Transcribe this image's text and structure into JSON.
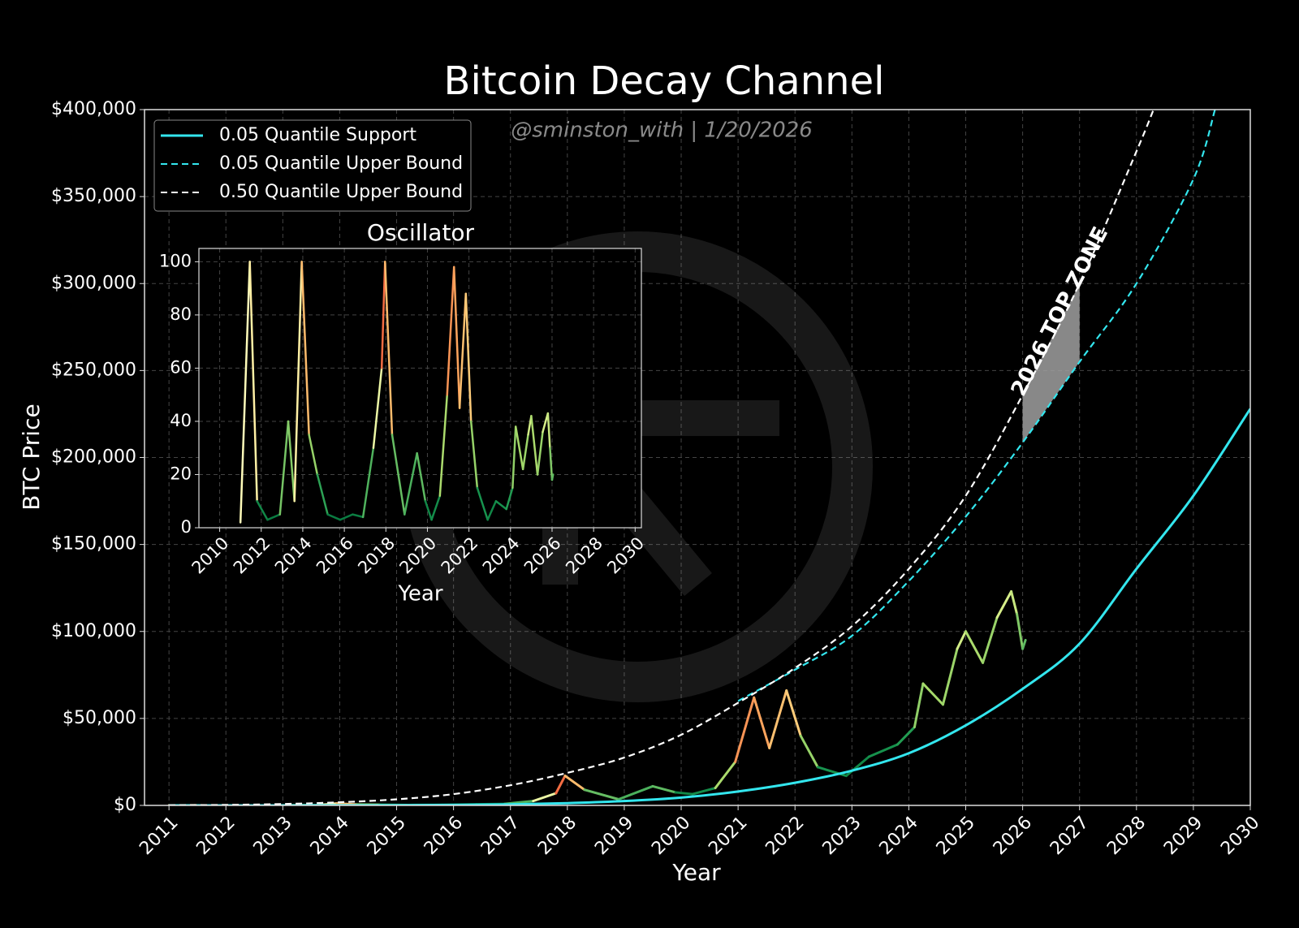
{
  "chart_data": [
    {
      "type": "line",
      "title": "Bitcoin Decay Channel",
      "subtitle": "@sminston_with  |  1/20/2026",
      "xlabel": "Year",
      "ylabel": "BTC Price",
      "xlim": [
        2010.57,
        2030
      ],
      "ylim": [
        0,
        400000
      ],
      "xticks": [
        2011,
        2012,
        2013,
        2014,
        2015,
        2016,
        2017,
        2018,
        2019,
        2020,
        2021,
        2022,
        2023,
        2024,
        2025,
        2026,
        2027,
        2028,
        2029,
        2030
      ],
      "yticks": [
        {
          "value": 0,
          "label": "$0"
        },
        {
          "value": 50000,
          "label": "$50,000"
        },
        {
          "value": 100000,
          "label": "$100,000"
        },
        {
          "value": 150000,
          "label": "$150,000"
        },
        {
          "value": 200000,
          "label": "$200,000"
        },
        {
          "value": 250000,
          "label": "$250,000"
        },
        {
          "value": 300000,
          "label": "$300,000"
        },
        {
          "value": 350000,
          "label": "$350,000"
        },
        {
          "value": 400000,
          "label": "$400,000"
        }
      ],
      "grid": true,
      "legend_loc": "upper left",
      "series": [
        {
          "name": "0.05 Quantile Support",
          "color": "#33e6ee",
          "dashed": false,
          "x": [
            2011,
            2012,
            2013,
            2014,
            2015,
            2016,
            2017,
            2018,
            2019,
            2020,
            2021,
            2022,
            2023,
            2024,
            2025,
            2026,
            2027,
            2028,
            2029,
            2030
          ],
          "values": [
            1,
            5,
            20,
            50,
            100,
            300,
            600,
            1300,
            2500,
            4500,
            8000,
            13000,
            20000,
            30000,
            46000,
            67000,
            93000,
            136000,
            178000,
            228000
          ]
        },
        {
          "name": "0.05 Quantile Upper Bound",
          "color": "#33e6ee",
          "dashed": true,
          "x": [
            2021,
            2022,
            2023,
            2024,
            2025,
            2026,
            2027,
            2028,
            2029,
            2029.38
          ],
          "values": [
            60000,
            78000,
            97500,
            129000,
            166000,
            208600,
            255000,
            300000,
            360000,
            400000
          ]
        },
        {
          "name": "0.50 Quantile Upper Bound",
          "color": "#ffffff",
          "dashed": true,
          "x": [
            2011,
            2012,
            2013,
            2014,
            2015,
            2016,
            2017,
            2018,
            2019,
            2020,
            2021,
            2022,
            2023,
            2024,
            2025,
            2026,
            2027,
            2028,
            2028.3
          ],
          "values": [
            100,
            300,
            800,
            1800,
            3500,
            6500,
            11600,
            18700,
            27500,
            40600,
            59000,
            79000,
            103000,
            136000,
            178000,
            236000,
            300000,
            376000,
            400000
          ]
        }
      ],
      "price": {
        "x": [
          2011.0,
          2011.45,
          2011.8,
          2012.3,
          2012.9,
          2013.3,
          2013.6,
          2013.95,
          2014.3,
          2014.7,
          2015.2,
          2015.8,
          2016.4,
          2016.9,
          2017.4,
          2017.8,
          2017.96,
          2018.3,
          2018.9,
          2019.5,
          2019.9,
          2020.2,
          2020.6,
          2020.95,
          2021.28,
          2021.55,
          2021.85,
          2022.1,
          2022.4,
          2022.9,
          2023.3,
          2023.8,
          2024.1,
          2024.25,
          2024.6,
          2024.85,
          2025.0,
          2025.3,
          2025.55,
          2025.8,
          2025.9,
          2026.0,
          2026.05
        ],
        "values": [
          1,
          30,
          3,
          5,
          13,
          200,
          100,
          1100,
          500,
          400,
          250,
          350,
          650,
          900,
          2500,
          7000,
          17000,
          9000,
          3500,
          11000,
          7500,
          6500,
          10000,
          25000,
          62000,
          33000,
          66000,
          40000,
          22000,
          17000,
          28000,
          35000,
          45000,
          70000,
          58000,
          90000,
          100000,
          82000,
          108000,
          123000,
          110000,
          90000,
          95000
        ]
      },
      "zone": {
        "label": "2026 TOP ZONE",
        "x": [
          2026,
          2027
        ]
      },
      "colormap": "RdYlGn"
    },
    {
      "type": "line",
      "title": "Oscillator",
      "xlabel": "Year",
      "xlim": [
        2009,
        2030.3
      ],
      "ylim": [
        0,
        105
      ],
      "xticks": [
        2010,
        2012,
        2014,
        2016,
        2018,
        2020,
        2022,
        2024,
        2026,
        2028,
        2030
      ],
      "yticks": [
        0,
        20,
        40,
        60,
        80,
        100
      ],
      "grid": true,
      "x": [
        2011.0,
        2011.45,
        2011.8,
        2012.3,
        2012.9,
        2013.3,
        2013.6,
        2013.95,
        2014.3,
        2014.7,
        2015.2,
        2015.8,
        2016.4,
        2016.9,
        2017.4,
        2017.8,
        2017.96,
        2018.3,
        2018.9,
        2019.5,
        2019.9,
        2020.2,
        2020.6,
        2020.95,
        2021.28,
        2021.55,
        2021.85,
        2022.1,
        2022.4,
        2022.9,
        2023.3,
        2023.8,
        2024.1,
        2024.25,
        2024.6,
        2024.85,
        2025.0,
        2025.3,
        2025.55,
        2025.8,
        2025.9,
        2026.0,
        2026.05
      ],
      "values": [
        2,
        100,
        10,
        3,
        5,
        40,
        10,
        100,
        35,
        20,
        5,
        3,
        5,
        4,
        30,
        60,
        100,
        35,
        5,
        28,
        10,
        3,
        12,
        50,
        98,
        45,
        88,
        40,
        15,
        3,
        10,
        7,
        15,
        38,
        22,
        35,
        42,
        20,
        36,
        43,
        30,
        18,
        20
      ]
    }
  ]
}
